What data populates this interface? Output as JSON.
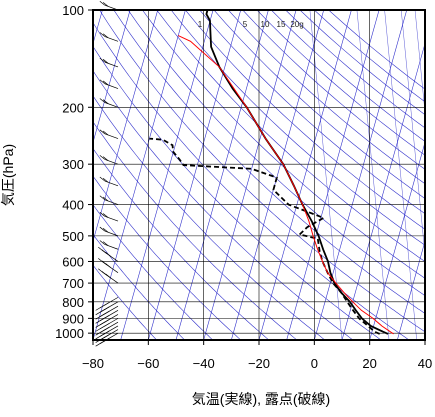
{
  "chart_data": {
    "type": "line",
    "title": "",
    "xlabel": "気温(実線), 露点(破線)",
    "ylabel": "気圧(hPa)",
    "x_axis": {
      "ticks": [
        -80,
        -60,
        -40,
        -20,
        0,
        20,
        40
      ],
      "range": [
        -80,
        40
      ]
    },
    "y_axis": {
      "scale": "log",
      "ticks": [
        100,
        200,
        300,
        400,
        500,
        600,
        700,
        800,
        900,
        1000
      ],
      "range": [
        100,
        1050
      ]
    },
    "mixing_ratio_labels": [
      "1",
      "5",
      "10",
      "15",
      "20g"
    ],
    "colors": {
      "temperature": "#000000",
      "dewpoint": "#000000",
      "parcel": "#ff0000",
      "background_lines": "#3333cc",
      "grid": "#000000"
    },
    "series": [
      {
        "name": "",
        "style": "solid",
        "color": "#000000",
        "points": [
          [
            1005,
            26
          ],
          [
            990,
            24
          ],
          [
            950,
            19
          ],
          [
            925,
            17
          ],
          [
            900,
            15
          ],
          [
            850,
            12
          ],
          [
            800,
            9
          ],
          [
            750,
            5
          ],
          [
            700,
            1.5
          ],
          [
            650,
            -1
          ],
          [
            600,
            -3
          ],
          [
            550,
            -6
          ],
          [
            500,
            -9
          ],
          [
            450,
            -13
          ],
          [
            400,
            -18
          ],
          [
            350,
            -23
          ],
          [
            300,
            -29
          ],
          [
            250,
            -38
          ],
          [
            200,
            -48
          ],
          [
            175,
            -55
          ],
          [
            150,
            -62
          ],
          [
            130,
            -67
          ],
          [
            115,
            -69
          ],
          [
            108,
            -70
          ],
          [
            103,
            -72
          ],
          [
            100,
            -72
          ]
        ]
      },
      {
        "name": "",
        "style": "dashed",
        "color": "#000000",
        "points": [
          [
            1005,
            23
          ],
          [
            990,
            21
          ],
          [
            950,
            18
          ],
          [
            925,
            16
          ],
          [
            900,
            14
          ],
          [
            850,
            11
          ],
          [
            800,
            8
          ],
          [
            750,
            5
          ],
          [
            700,
            1
          ],
          [
            650,
            -2
          ],
          [
            600,
            -5
          ],
          [
            560,
            -7
          ],
          [
            510,
            -9
          ],
          [
            495,
            -16
          ],
          [
            470,
            -14
          ],
          [
            440,
            -9
          ],
          [
            400,
            -23
          ],
          [
            360,
            -30
          ],
          [
            330,
            -30
          ],
          [
            310,
            -40
          ],
          [
            302,
            -65
          ],
          [
            290,
            -67
          ],
          [
            275,
            -70
          ],
          [
            262,
            -71
          ],
          [
            252,
            -75
          ],
          [
            250,
            -80
          ]
        ]
      },
      {
        "name": "",
        "style": "solid",
        "color": "#ff0000",
        "points": [
          [
            1005,
            28
          ],
          [
            950,
            23
          ],
          [
            900,
            19
          ],
          [
            850,
            14
          ],
          [
            800,
            10
          ],
          [
            750,
            6
          ],
          [
            700,
            2
          ],
          [
            650,
            -2
          ],
          [
            600,
            -5
          ],
          [
            550,
            -8
          ],
          [
            500,
            -11
          ],
          [
            450,
            -14
          ],
          [
            400,
            -18
          ],
          [
            350,
            -23
          ],
          [
            300,
            -29
          ],
          [
            250,
            -38
          ],
          [
            200,
            -48
          ],
          [
            150,
            -62
          ],
          [
            125,
            -75
          ],
          [
            120,
            -80
          ]
        ]
      }
    ],
    "wind_barbs": [
      {
        "p": 1000,
        "sym": "C"
      },
      {
        "p": 975,
        "sym": "C"
      },
      {
        "p": 950,
        "sym": "C"
      },
      {
        "p": 925,
        "sym": "C"
      },
      {
        "p": 900,
        "sym": "C"
      },
      {
        "p": 875,
        "sym": "C"
      },
      {
        "p": 850,
        "sym": "C"
      },
      {
        "p": 825,
        "sym": "C"
      },
      {
        "p": 800,
        "sym": "C"
      },
      {
        "p": 775,
        "sym": "C"
      },
      {
        "p": 700,
        "sym": "B"
      },
      {
        "p": 650,
        "sym": "B"
      },
      {
        "p": 600,
        "sym": "B"
      },
      {
        "p": 550,
        "sym": "A"
      },
      {
        "p": 500,
        "sym": "A"
      },
      {
        "p": 450,
        "sym": "A"
      },
      {
        "p": 400,
        "sym": "A"
      },
      {
        "p": 350,
        "sym": "A"
      },
      {
        "p": 300,
        "sym": "A"
      },
      {
        "p": 250,
        "sym": "A"
      },
      {
        "p": 200,
        "sym": "A"
      },
      {
        "p": 175,
        "sym": "A"
      },
      {
        "p": 150,
        "sym": "A"
      },
      {
        "p": 125,
        "sym": "A"
      },
      {
        "p": 100,
        "sym": "A"
      }
    ]
  }
}
